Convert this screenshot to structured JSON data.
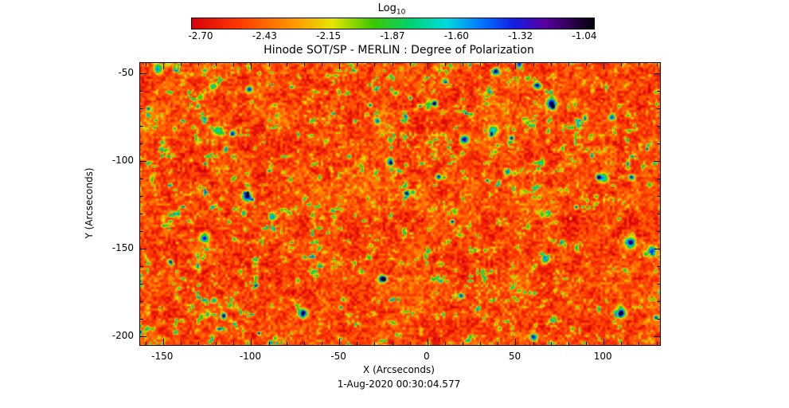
{
  "figure": {
    "title": "Hinode SOT/SP - MERLIN : Degree of Polarization",
    "caption": "1-Aug-2020 00:30:04.577",
    "background": "#ffffff"
  },
  "colorbar": {
    "label": "Log",
    "label_sub": "10",
    "ticks": [
      "-2.70",
      "-2.43",
      "-2.15",
      "-1.87",
      "-1.60",
      "-1.32",
      "-1.04"
    ]
  },
  "axes": {
    "xlabel": "X (Arcseconds)",
    "ylabel": "Y (Arcseconds)",
    "x_tick_labels": [
      "-150",
      "-100",
      "-50",
      "0",
      "50",
      "100"
    ],
    "y_tick_labels": [
      "-50",
      "-100",
      "-150",
      "-200"
    ]
  },
  "chart_data": {
    "type": "heatmap",
    "title": "Hinode SOT/SP - MERLIN : Degree of Polarization",
    "xlabel": "X (Arcseconds)",
    "ylabel": "Y (Arcseconds)",
    "x_range": [
      -163,
      132
    ],
    "y_range": [
      -205,
      -44
    ],
    "x_ticks": [
      -150,
      -100,
      -50,
      0,
      50,
      100
    ],
    "y_ticks": [
      -50,
      -100,
      -150,
      -200
    ],
    "x_minor_step": 10,
    "y_minor_step": 10,
    "colorbar_label": "Log10",
    "colorbar_ticks": [
      -2.7,
      -2.43,
      -2.15,
      -1.87,
      -1.6,
      -1.32,
      -1.04
    ],
    "colorbar_range": [
      -2.75,
      -1.03
    ],
    "value_stats": {
      "background_log10": -2.6,
      "network_speckles_log10": -1.9,
      "strong_flux_points_log10": -1.1
    },
    "colormap": {
      "stops": [
        {
          "t": 0.0,
          "c": [
            215,
            0,
            10
          ]
        },
        {
          "t": 0.12,
          "c": [
            255,
            60,
            0
          ]
        },
        {
          "t": 0.25,
          "c": [
            255,
            150,
            0
          ]
        },
        {
          "t": 0.35,
          "c": [
            230,
            230,
            0
          ]
        },
        {
          "t": 0.45,
          "c": [
            60,
            200,
            0
          ]
        },
        {
          "t": 0.55,
          "c": [
            0,
            210,
            120
          ]
        },
        {
          "t": 0.63,
          "c": [
            0,
            220,
            220
          ]
        },
        {
          "t": 0.72,
          "c": [
            0,
            120,
            255
          ]
        },
        {
          "t": 0.8,
          "c": [
            20,
            30,
            230
          ]
        },
        {
          "t": 0.88,
          "c": [
            90,
            0,
            160
          ]
        },
        {
          "t": 1.0,
          "c": [
            5,
            0,
            10
          ]
        }
      ]
    },
    "field": {
      "seed": 77,
      "base": 0.15,
      "fine_amp": 0.2,
      "fine_cell": 3,
      "med_amp": 0.14,
      "med_cell": 9,
      "large_amp": 0.08,
      "large_cell": 34,
      "speckle_threshold": 0.7,
      "speckle_gain": 1.8,
      "blobs": 46,
      "specks": 230
    }
  }
}
